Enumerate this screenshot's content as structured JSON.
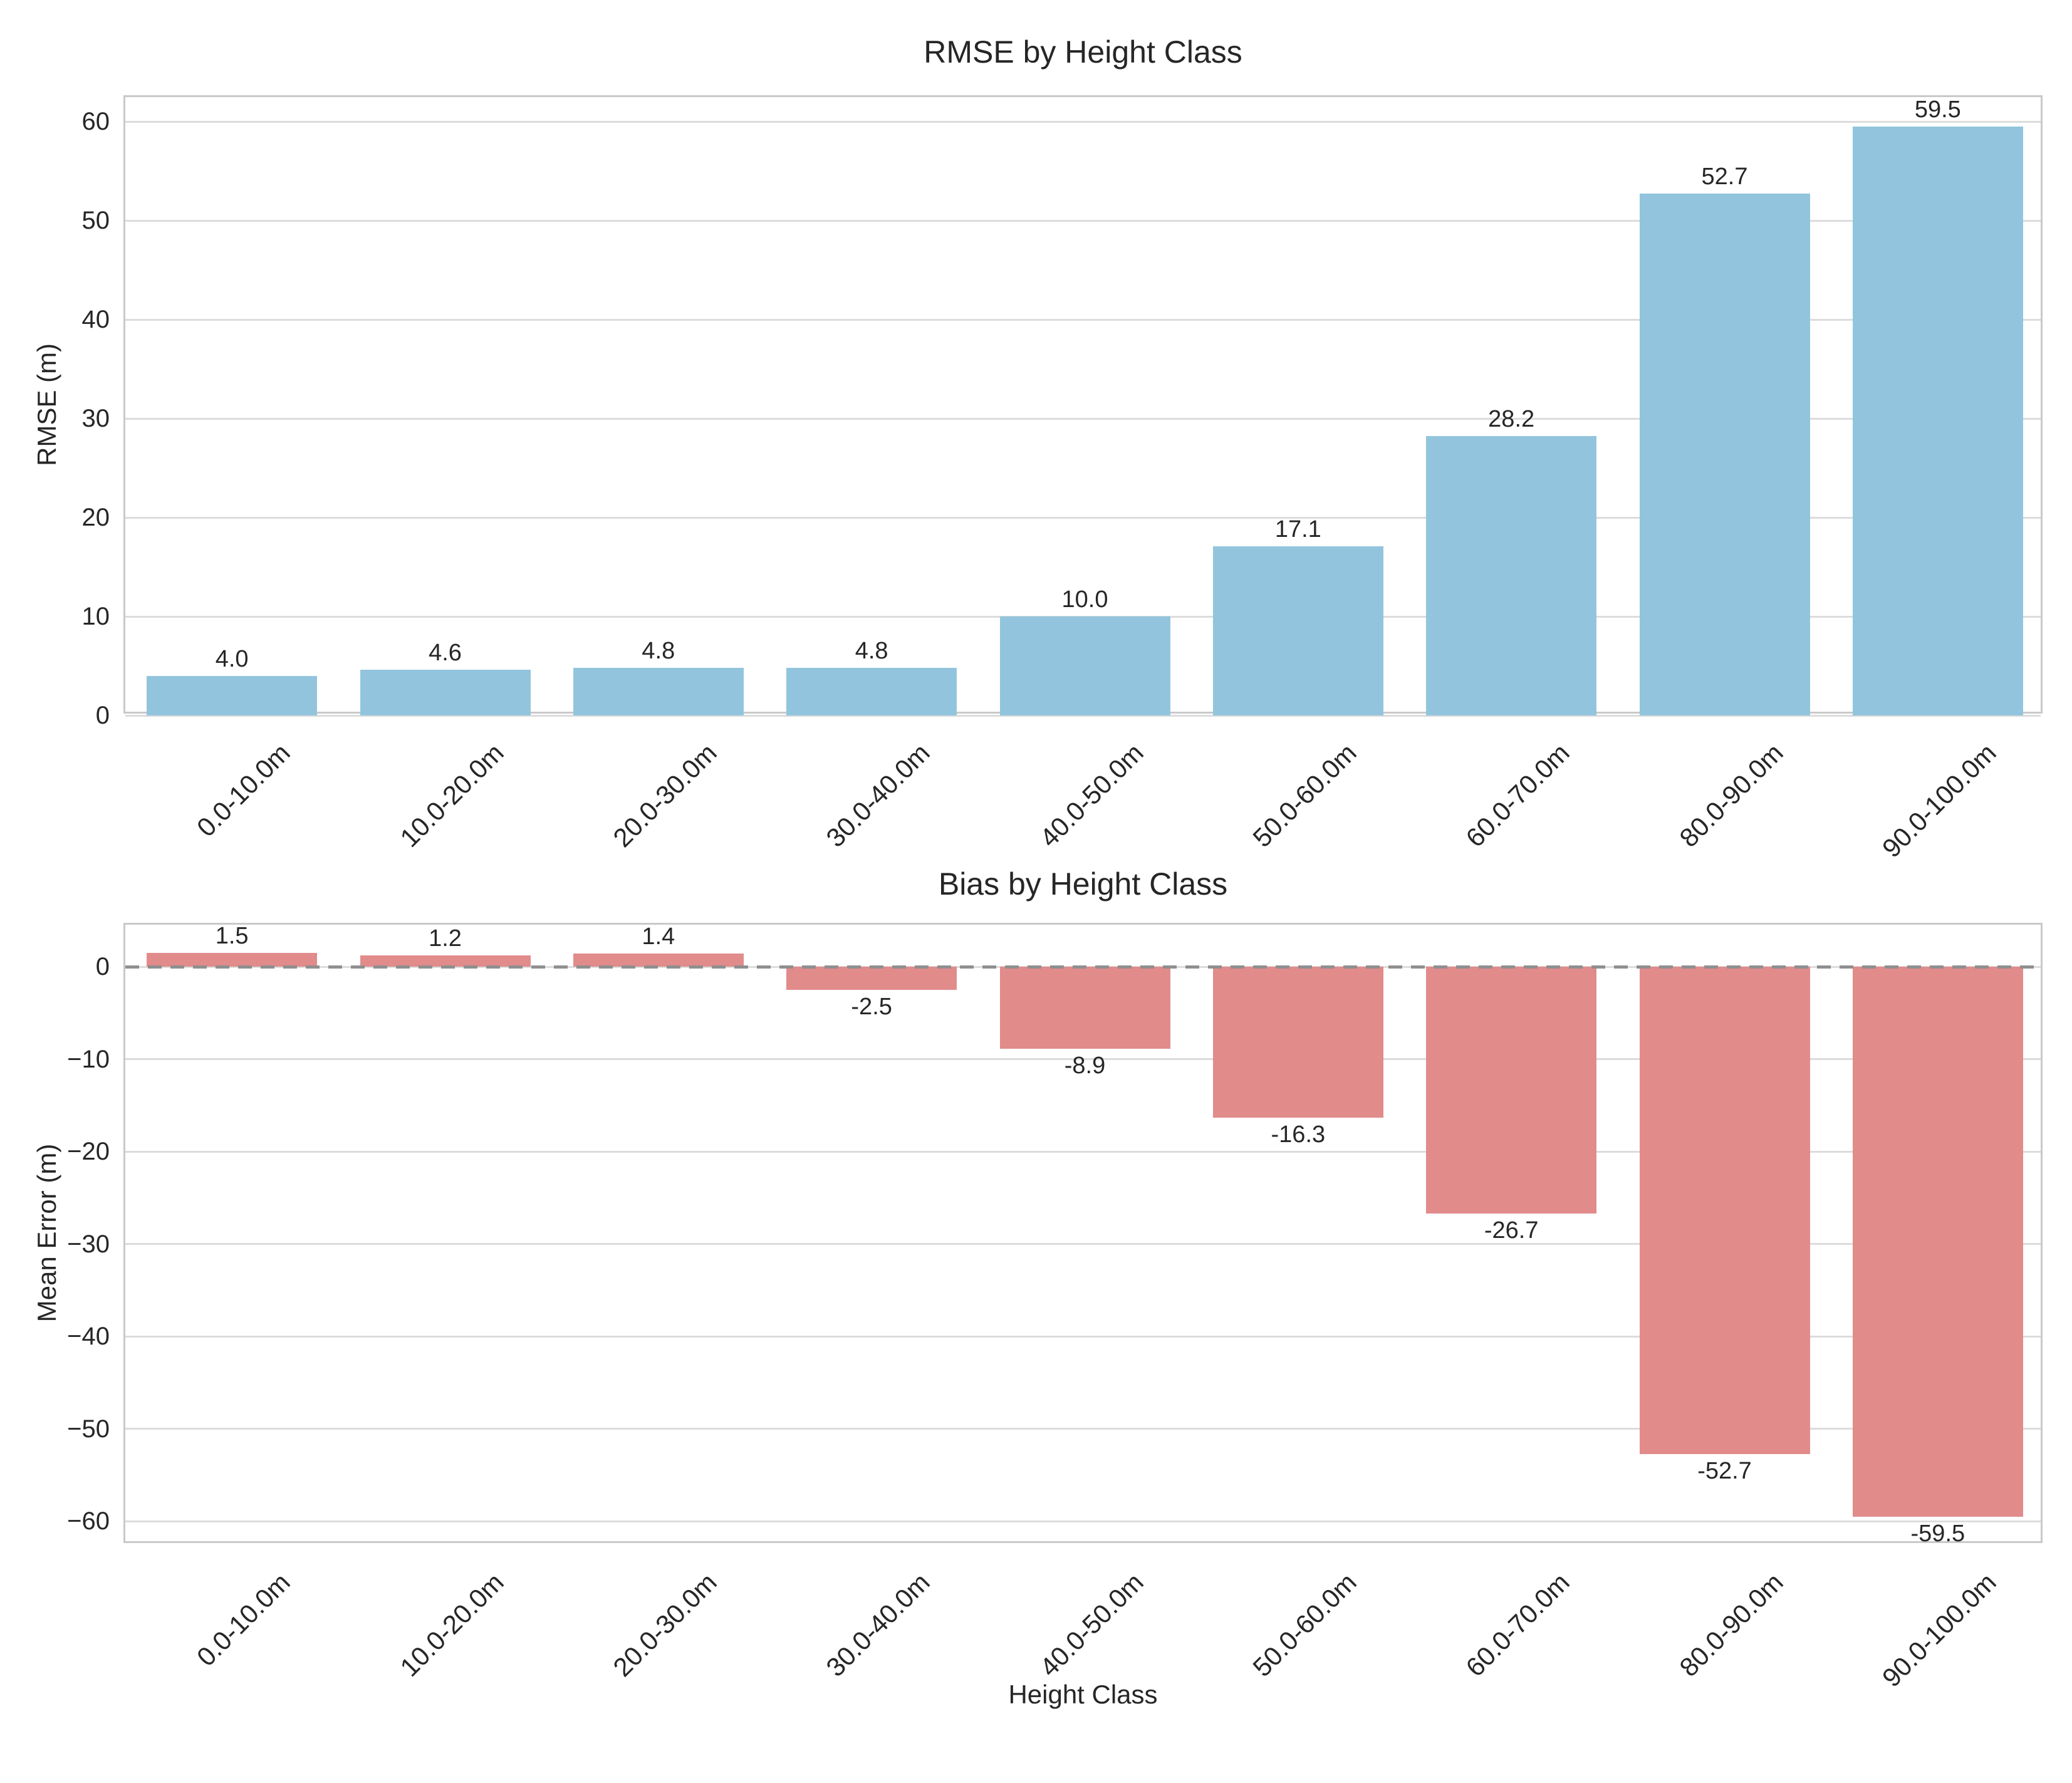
{
  "figure": {
    "background": "#ffffff",
    "text_color": "#262626",
    "grid_color": "#dcdcdc",
    "spine_color": "#c9c9c9"
  },
  "chart_data": [
    {
      "type": "bar",
      "title": "RMSE by Height Class",
      "xlabel": "",
      "ylabel": "RMSE (m)",
      "categories": [
        "0.0-10.0m",
        "10.0-20.0m",
        "20.0-30.0m",
        "30.0-40.0m",
        "40.0-50.0m",
        "50.0-60.0m",
        "60.0-70.0m",
        "80.0-90.0m",
        "90.0-100.0m"
      ],
      "values": [
        4.0,
        4.6,
        4.8,
        4.8,
        10.0,
        17.1,
        28.2,
        52.7,
        59.5
      ],
      "bar_labels": [
        "4.0",
        "4.6",
        "4.8",
        "4.8",
        "10.0",
        "17.1",
        "28.2",
        "52.7",
        "59.5"
      ],
      "bar_color": "#92c5dd",
      "ylim": [
        0,
        62.475
      ],
      "yticks": [
        0,
        10,
        20,
        30,
        40,
        50,
        60
      ],
      "ytick_labels": [
        "0",
        "10",
        "20",
        "30",
        "40",
        "50",
        "60"
      ],
      "grid": true,
      "legend": "none"
    },
    {
      "type": "bar",
      "title": "Bias by Height Class",
      "xlabel": "Height Class",
      "ylabel": "Mean Error (m)",
      "categories": [
        "0.0-10.0m",
        "10.0-20.0m",
        "20.0-30.0m",
        "30.0-40.0m",
        "40.0-50.0m",
        "50.0-60.0m",
        "60.0-70.0m",
        "80.0-90.0m",
        "90.0-100.0m"
      ],
      "values": [
        1.5,
        1.2,
        1.4,
        -2.5,
        -8.9,
        -16.3,
        -26.7,
        -52.7,
        -59.5
      ],
      "bar_labels": [
        "1.5",
        "1.2",
        "1.4",
        "-2.5",
        "-8.9",
        "-16.3",
        "-26.7",
        "-52.7",
        "-59.5"
      ],
      "bar_color": "#e18b8b",
      "ylim": [
        -62.55,
        4.55
      ],
      "yticks": [
        0,
        -10,
        -20,
        -30,
        -40,
        -50,
        -60
      ],
      "ytick_labels": [
        "0",
        "−10",
        "−20",
        "−30",
        "−40",
        "−50",
        "−60"
      ],
      "zero_line": {
        "y": 0,
        "style": "dashed",
        "color": "#8f8f8f"
      },
      "grid": true,
      "legend": "none"
    }
  ]
}
